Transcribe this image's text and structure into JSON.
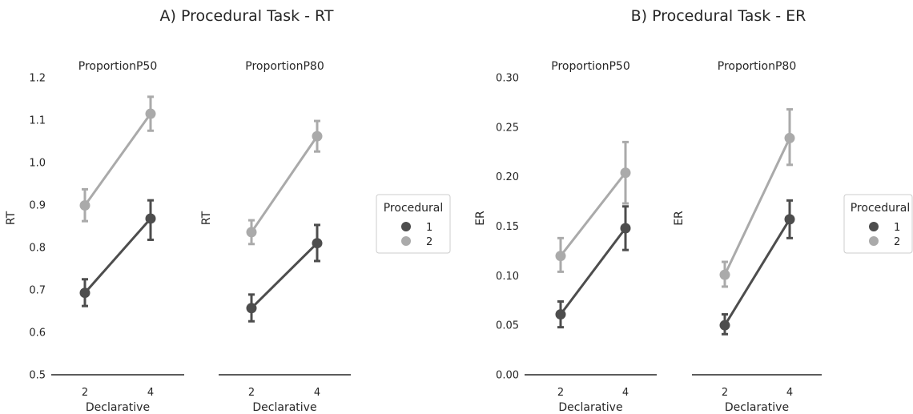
{
  "figure_titles": [
    "A) Procedural Task - RT",
    "B) Procedural Task - ER"
  ],
  "legend": {
    "title": "Procedural",
    "entries": [
      {
        "label": "1",
        "color": "#4d4d4d"
      },
      {
        "label": "2",
        "color": "#aaaaaa"
      }
    ]
  },
  "chart_data": [
    {
      "type": "line",
      "group": "A",
      "title": "ProportionP50",
      "xlabel": "Declarative",
      "ylabel": "RT",
      "categories": [
        "2",
        "4"
      ],
      "ylim": [
        0.5,
        1.2
      ],
      "yticks": [
        "0.5",
        "0.6",
        "0.7",
        "0.8",
        "0.9",
        "1.0",
        "1.1",
        "1.2"
      ],
      "series": [
        {
          "name": "1",
          "color": "#4d4d4d",
          "values": [
            0.693,
            0.868
          ],
          "err_low": [
            0.662,
            0.818
          ],
          "err_high": [
            0.725,
            0.911
          ]
        },
        {
          "name": "2",
          "color": "#aaaaaa",
          "values": [
            0.899,
            1.115
          ],
          "err_low": [
            0.862,
            1.075
          ],
          "err_high": [
            0.937,
            1.155
          ]
        }
      ]
    },
    {
      "type": "line",
      "group": "A",
      "title": "ProportionP80",
      "xlabel": "Declarative",
      "ylabel": "RT",
      "categories": [
        "2",
        "4"
      ],
      "ylim": [
        0.5,
        1.2
      ],
      "yticks": [],
      "series": [
        {
          "name": "1",
          "color": "#4d4d4d",
          "values": [
            0.657,
            0.81
          ],
          "err_low": [
            0.626,
            0.768
          ],
          "err_high": [
            0.689,
            0.853
          ]
        },
        {
          "name": "2",
          "color": "#aaaaaa",
          "values": [
            0.836,
            1.062
          ],
          "err_low": [
            0.808,
            1.026
          ],
          "err_high": [
            0.864,
            1.098
          ]
        }
      ]
    },
    {
      "type": "line",
      "group": "B",
      "title": "ProportionP50",
      "xlabel": "Declarative",
      "ylabel": "ER",
      "categories": [
        "2",
        "4"
      ],
      "ylim": [
        0.0,
        0.3
      ],
      "yticks": [
        "0.00",
        "0.05",
        "0.10",
        "0.15",
        "0.20",
        "0.25",
        "0.30"
      ],
      "series": [
        {
          "name": "1",
          "color": "#4d4d4d",
          "values": [
            0.061,
            0.148
          ],
          "err_low": [
            0.048,
            0.126
          ],
          "err_high": [
            0.074,
            0.17
          ]
        },
        {
          "name": "2",
          "color": "#aaaaaa",
          "values": [
            0.12,
            0.204
          ],
          "err_low": [
            0.104,
            0.173
          ],
          "err_high": [
            0.138,
            0.235
          ]
        }
      ]
    },
    {
      "type": "line",
      "group": "B",
      "title": "ProportionP80",
      "xlabel": "Declarative",
      "ylabel": "ER",
      "categories": [
        "2",
        "4"
      ],
      "ylim": [
        0.0,
        0.3
      ],
      "yticks": [],
      "series": [
        {
          "name": "1",
          "color": "#4d4d4d",
          "values": [
            0.05,
            0.157
          ],
          "err_low": [
            0.041,
            0.138
          ],
          "err_high": [
            0.061,
            0.176
          ]
        },
        {
          "name": "2",
          "color": "#aaaaaa",
          "values": [
            0.101,
            0.239
          ],
          "err_low": [
            0.089,
            0.212
          ],
          "err_high": [
            0.114,
            0.268
          ]
        }
      ]
    }
  ]
}
